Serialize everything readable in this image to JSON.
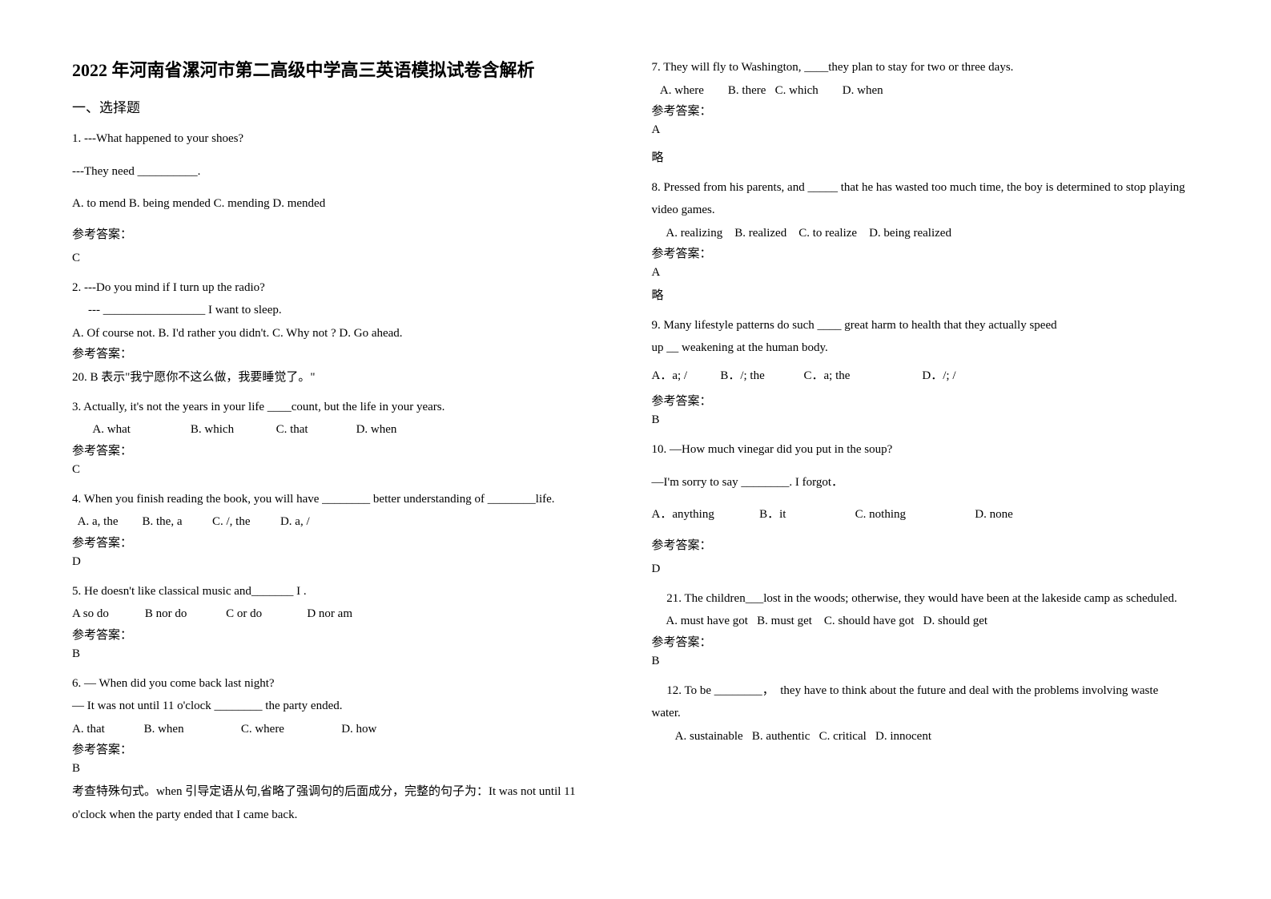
{
  "title": "2022 年河南省漯河市第二高级中学高三英语模拟试卷含解析",
  "section1": "一、选择题",
  "left": {
    "q1_l1": "1. ---What happened to your shoes?",
    "q1_l2": "---They need __________.",
    "q1_opts": "A. to mend    B. being mended   C. mending   D. mended",
    "q1_ans_label": "参考答案：",
    "q1_ans": "C",
    "q2_l1": "2. ---Do you mind if I turn up the radio?",
    "q2_l2": "--- _________________ I want to sleep.",
    "q2_opts": "A. Of course not.    B. I'd rather you didn't.   C. Why not ?    D. Go ahead.",
    "q2_ans_label": "参考答案：",
    "q2_expl": "20. B 表示\"我宁愿你不这么做，我要睡觉了。\"",
    "q3_l1": "3. Actually, it's not the years in your life ____count, but the life in your years.",
    "q3_opts": "       A. what                    B. which              C. that                D. when",
    "q3_ans_label": "参考答案：",
    "q3_ans": "C",
    "q4_l1": "4. When you finish reading the book, you will have ________ better understanding of ________life.",
    "q4_opts": "  A. a, the        B. the, a          C. /, the          D. a, /",
    "q4_ans_label": "参考答案：",
    "q4_ans": "D",
    "q5_l1": "5. He doesn't like classical music and_______ I .",
    "q5_opts": "A so do            B nor do             C or do               D nor am",
    "q5_ans_label": "参考答案：",
    "q5_ans": "B",
    "q6_l1": "6. — When did you come back last night?",
    "q6_l2": "— It was not until 11 o'clock ________ the party ended.",
    "q6_opts": "A. that             B. when                   C. where                   D. how",
    "q6_ans_label": "参考答案：",
    "q6_ans": "B",
    "q6_expl1": "考查特殊句式。when 引导定语从句,省略了强调句的后面成分，完整的句子为：It was not until 11",
    "q6_expl2": "o'clock when the party ended that I came back."
  },
  "right": {
    "q7_l1": "7. They will fly to Washington, ____they plan to stay for two or three days.",
    "q7_opts": "   A. where        B. there   C. which        D. when",
    "q7_ans_label": "参考答案：",
    "q7_ans": "A",
    "q7_expl": "略",
    "q8_l1": "8. Pressed from his parents, and _____ that he has wasted too much time, the boy is determined to stop playing video games.",
    "q8_opts": "     A. realizing    B. realized    C. to realize    D. being realized",
    "q8_ans_label": "参考答案：",
    "q8_ans": "A",
    "q8_expl": "略",
    "q9_l1": "9. Many lifestyle patterns do such ____ great harm to health that they actually speed",
    "q9_l2": "up __ weakening at the human body.",
    "q9_opts": "A．a; /           B．/; the             C．a; the                        D．/; /",
    "q9_ans_label": "参考答案：",
    "q9_ans": "B",
    "q10_l1": "10. —How much vinegar did you put in the soup?",
    "q10_l2": "—I'm sorry to say ________. I forgot．",
    "q10_opts": "A．anything               B．it                       C. nothing                       D. none",
    "q10_ans_label": "参考答案：",
    "q10_ans": "D",
    "q11_l1": "     21. The children___lost in the woods; otherwise, they would have been at the lakeside camp as scheduled.",
    "q11_opts": "     A. must have got   B. must get    C. should have got   D. should get",
    "q11_ans_label": "参考答案：",
    "q11_ans": "B",
    "q12_l1": "     12. To be ________，  they have to think about the future and deal with the problems involving waste",
    "q12_l2": "water.",
    "q12_opts": "        A. sustainable   B. authentic   C. critical   D. innocent"
  }
}
